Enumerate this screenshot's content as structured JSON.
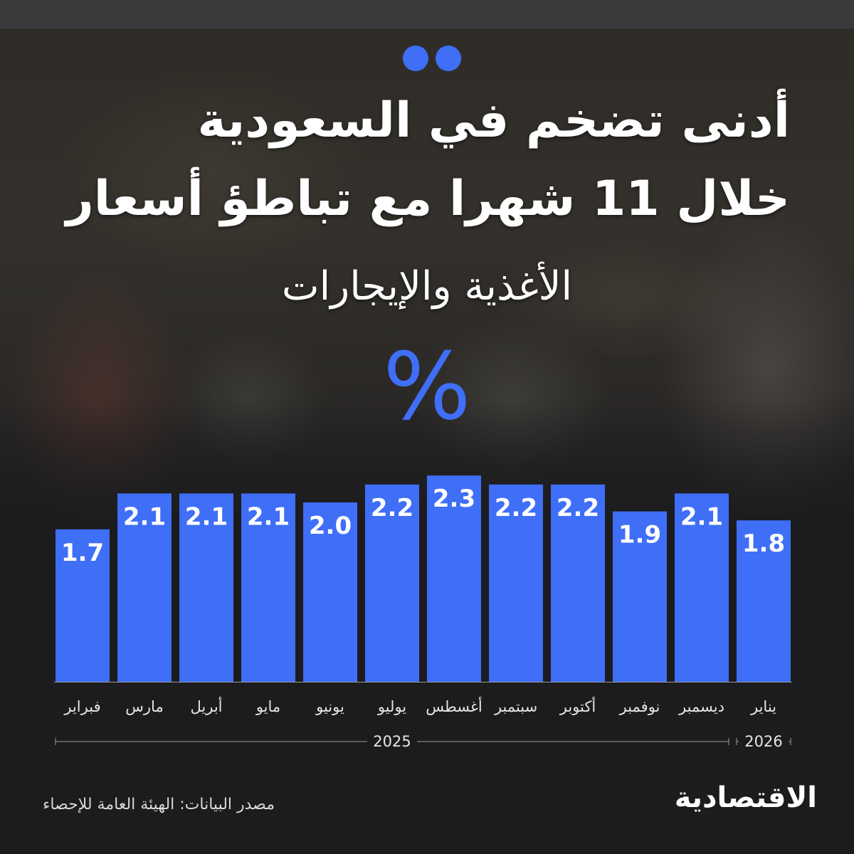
{
  "header": {
    "title_line_1": "أدنى تضخم في السعودية",
    "title_line_2": "خلال 11 شهرا مع تباطؤ أسعار",
    "subtitle": "الأغذية والإيجارات",
    "unit_symbol": "%"
  },
  "colors": {
    "bar": "#3f6ef7",
    "dots": "#3f6ef7",
    "background": "#1c1c1e",
    "axis": "#9a9a9a"
  },
  "chart_data": {
    "type": "bar",
    "categories": [
      "فبراير",
      "مارس",
      "أبريل",
      "مايو",
      "يونيو",
      "يوليو",
      "أغسطس",
      "سبتمبر",
      "أكتوبر",
      "نوفمبر",
      "ديسمبر",
      "يناير"
    ],
    "values": [
      1.7,
      2.1,
      2.1,
      2.1,
      2.0,
      2.2,
      2.3,
      2.2,
      2.2,
      1.9,
      2.1,
      1.8
    ],
    "data_labels": [
      "1.7",
      "2.1",
      "2.1",
      "2.1",
      "2.0",
      "2.2",
      "2.3",
      "2.2",
      "2.2",
      "1.9",
      "2.1",
      "1.8"
    ],
    "year_groups": [
      {
        "label": "2025",
        "from": 0,
        "to": 10
      },
      {
        "label": "2026",
        "from": 11,
        "to": 11
      }
    ],
    "title": "",
    "xlabel": "",
    "ylabel": "",
    "grid": false,
    "legend": "none"
  },
  "footer": {
    "source": "مصدر البيانات: الهيئة العامة للإحصاء",
    "logo": "الاقتصادية"
  }
}
